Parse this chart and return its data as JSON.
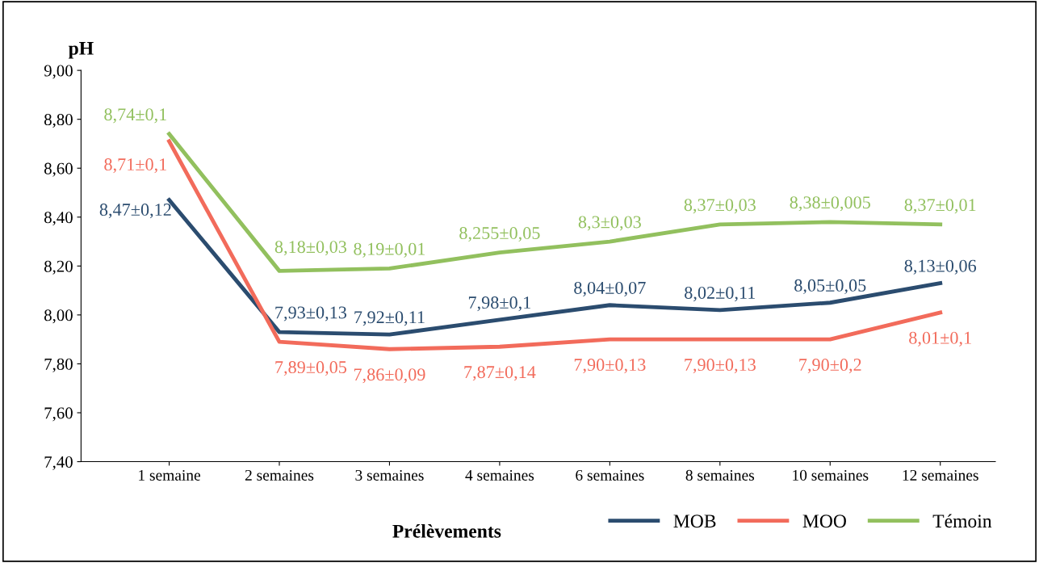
{
  "chart_data": {
    "type": "line",
    "xlabel": "Prélèvements",
    "ylabel": "pH",
    "categories": [
      "1 semaine",
      "2 semaines",
      "3 semaines",
      "4 semaines",
      "6 semaines",
      "8 semaines",
      "10 semaines",
      "12 semaines"
    ],
    "series": [
      {
        "name": "MOB",
        "color": "#2b4c6f",
        "values": [
          8.47,
          7.93,
          7.92,
          7.98,
          8.04,
          8.02,
          8.05,
          8.13
        ],
        "value_labels": [
          "8,47±0,12",
          "7,93±0,13",
          "7,92±0,11",
          "7,98±0,1",
          "8,04±0,07",
          "8,02±0,11",
          "8,05±0,05",
          "8,13±0,06"
        ]
      },
      {
        "name": "MOO",
        "color": "#f26b5b",
        "values": [
          8.71,
          7.89,
          7.86,
          7.87,
          7.9,
          7.9,
          7.9,
          8.01
        ],
        "value_labels": [
          "8,71±0,1",
          "7,89±0,05",
          "7,86±0,09",
          "7,87±0,14",
          "7,90±0,13",
          "7,90±0,13",
          "7,90±0,2",
          "8,01±0,1"
        ]
      },
      {
        "name": "Témoin",
        "color": "#92c05e",
        "values": [
          8.74,
          8.18,
          8.19,
          8.255,
          8.3,
          8.37,
          8.38,
          8.37
        ],
        "value_labels": [
          "8,74±0,1",
          "8,18±0,03",
          "8,19±0,01",
          "8,255±0,05",
          "8,3±0,03",
          "8,37±0,03",
          "8,38±0,005",
          "8,37±0,01"
        ]
      }
    ],
    "ylim": [
      7.4,
      9.0
    ],
    "yticks": [
      {
        "value": 7.4,
        "label": "7,40"
      },
      {
        "value": 7.6,
        "label": "7,60"
      },
      {
        "value": 7.8,
        "label": "7,80"
      },
      {
        "value": 8.0,
        "label": "8,00"
      },
      {
        "value": 8.2,
        "label": "8,20"
      },
      {
        "value": 8.4,
        "label": "8,40"
      },
      {
        "value": 8.6,
        "label": "8,60"
      },
      {
        "value": 8.8,
        "label": "8,80"
      },
      {
        "value": 9.0,
        "label": "9,00"
      }
    ],
    "grid": false,
    "legend": "bottom",
    "marker": "none",
    "line_style": "solid"
  }
}
